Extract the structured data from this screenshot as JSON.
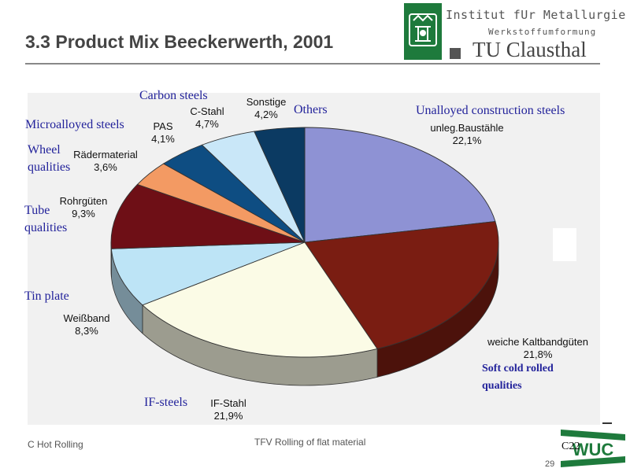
{
  "slide": {
    "title": "3.3   Product Mix Beeckerwerth, 2001",
    "institute": "Institut fUr Metallurgie",
    "department": "Werkstoffumformung",
    "university": "TU Clausthal",
    "footer_left": "C Hot Rolling",
    "footer_center": "TFV Rolling of flat material",
    "page_number": "29",
    "slide_code": "C22",
    "wuc_logo_text": "WUC"
  },
  "chart_data": {
    "type": "pie",
    "title": "",
    "slices": [
      {
        "label": "unleg.Baustähle",
        "value": 22.1,
        "value_label": "22,1%",
        "english": "Unalloyed construction steels",
        "color": "#8e92d4"
      },
      {
        "label": "weiche Kaltbandgüten",
        "value": 21.8,
        "value_label": "21,8%",
        "english": "Soft cold rolled qualities",
        "color": "#7a1d12"
      },
      {
        "label": "IF-Stahl",
        "value": 21.9,
        "value_label": "21,9%",
        "english": "IF-steels",
        "color": "#fbfbe6"
      },
      {
        "label": "Weißband",
        "value": 8.3,
        "value_label": "8,3%",
        "english": "Tin plate",
        "color": "#bde4f6"
      },
      {
        "label": "Rohrgüten",
        "value": 9.3,
        "value_label": "9,3%",
        "english": "Tube qualities",
        "color": "#6e0f16"
      },
      {
        "label": "Rädermaterial",
        "value": 3.6,
        "value_label": "3,6%",
        "english": "Wheel qualities",
        "color": "#f39a63"
      },
      {
        "label": "PAS",
        "value": 4.1,
        "value_label": "4,1%",
        "english": "Microalloyed steels",
        "color": "#0e4d82"
      },
      {
        "label": "C-Stahl",
        "value": 4.7,
        "value_label": "4,7%",
        "english": "Carbon steels",
        "color": "#c9e7f8"
      },
      {
        "label": "Sonstige",
        "value": 4.2,
        "value_label": "4,2%",
        "english": "Others",
        "color": "#0b3a62"
      }
    ]
  }
}
